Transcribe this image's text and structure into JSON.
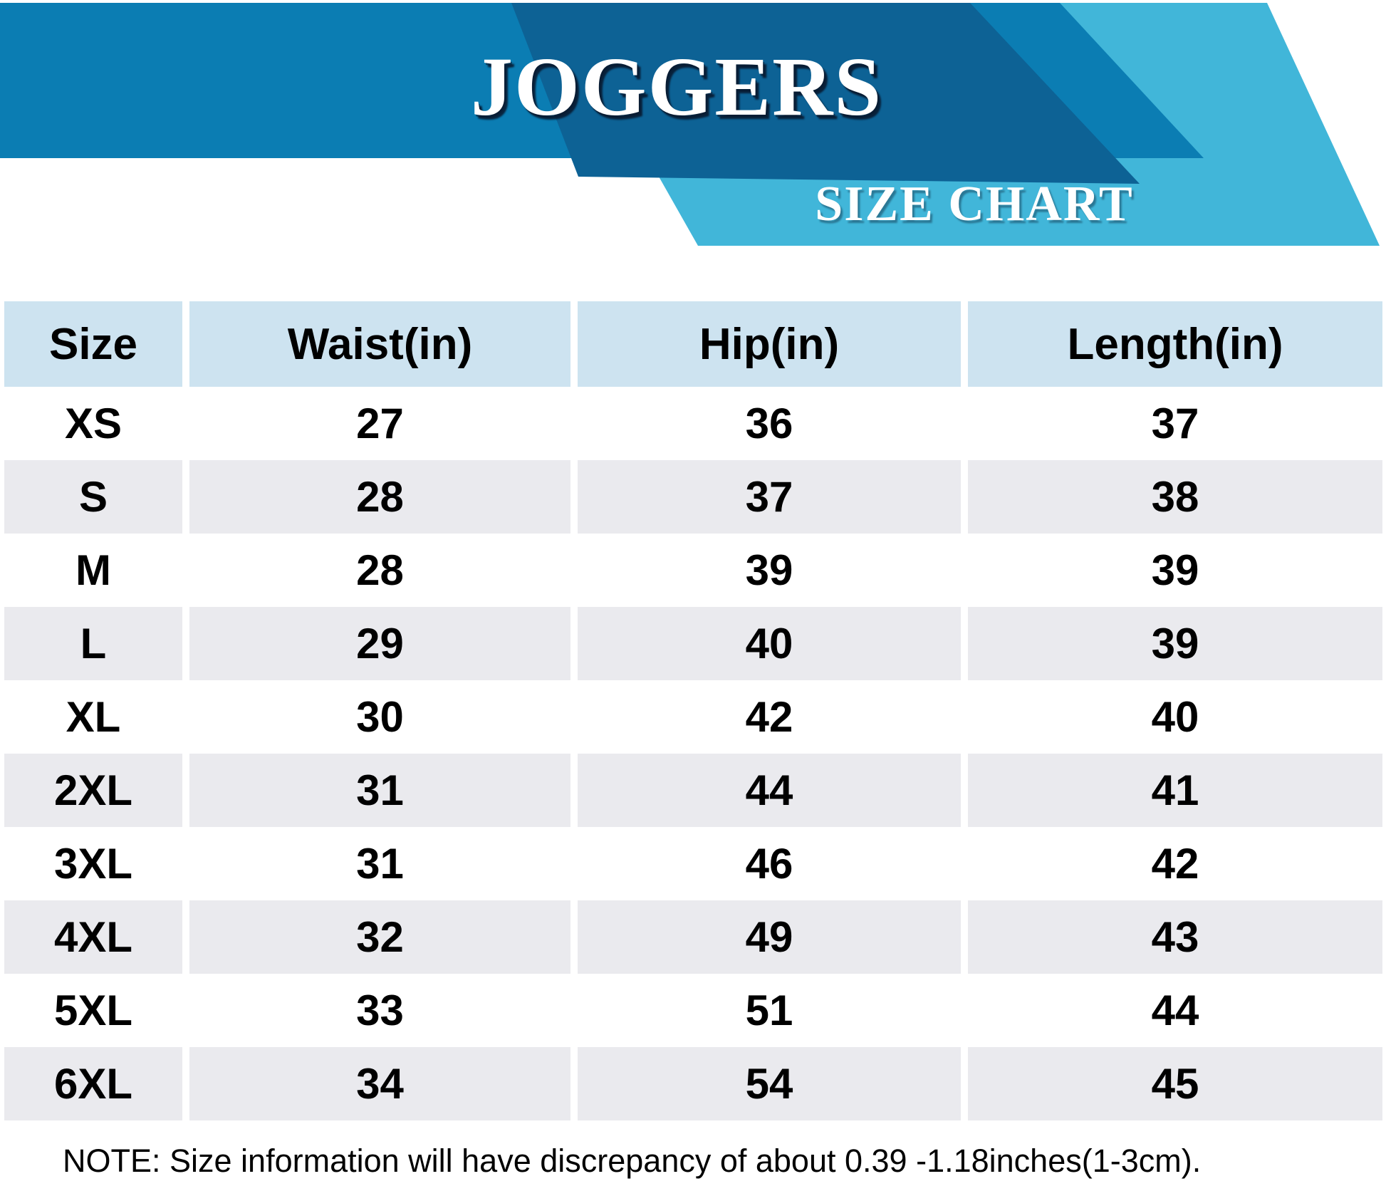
{
  "banner": {
    "title": "JOGGERS",
    "subtitle": "SIZE CHART",
    "colors": {
      "band_blue": "#0b7db3",
      "panel_dark_blue": "#0d6295",
      "ribbon_light_blue": "#41b6d9"
    }
  },
  "table": {
    "columns": [
      "Size",
      "Waist(in)",
      "Hip(in)",
      "Length(in)"
    ],
    "rows": [
      {
        "size": "XS",
        "waist": "27",
        "hip": "36",
        "length": "37"
      },
      {
        "size": "S",
        "waist": "28",
        "hip": "37",
        "length": "38"
      },
      {
        "size": "M",
        "waist": "28",
        "hip": "39",
        "length": "39"
      },
      {
        "size": "L",
        "waist": "29",
        "hip": "40",
        "length": "39"
      },
      {
        "size": "XL",
        "waist": "30",
        "hip": "42",
        "length": "40"
      },
      {
        "size": "2XL",
        "waist": "31",
        "hip": "44",
        "length": "41"
      },
      {
        "size": "3XL",
        "waist": "31",
        "hip": "46",
        "length": "42"
      },
      {
        "size": "4XL",
        "waist": "32",
        "hip": "49",
        "length": "43"
      },
      {
        "size": "5XL",
        "waist": "33",
        "hip": "51",
        "length": "44"
      },
      {
        "size": "6XL",
        "waist": "34",
        "hip": "54",
        "length": "45"
      }
    ],
    "header_bg": "#cde3f0",
    "alt_row_bg": "#eaeaee"
  },
  "note": {
    "text": "NOTE: Size information will have discrepancy of about 0.39 -1.18inches(1-3cm)."
  },
  "chart_data": {
    "type": "table",
    "title": "JOGGERS SIZE CHART",
    "columns": [
      "Size",
      "Waist(in)",
      "Hip(in)",
      "Length(in)"
    ],
    "rows": [
      [
        "XS",
        27,
        36,
        37
      ],
      [
        "S",
        28,
        37,
        38
      ],
      [
        "M",
        28,
        39,
        39
      ],
      [
        "L",
        29,
        40,
        39
      ],
      [
        "XL",
        30,
        42,
        40
      ],
      [
        "2XL",
        31,
        44,
        41
      ],
      [
        "3XL",
        31,
        46,
        42
      ],
      [
        "4XL",
        32,
        49,
        43
      ],
      [
        "5XL",
        33,
        51,
        44
      ],
      [
        "6XL",
        34,
        54,
        45
      ]
    ],
    "note": "NOTE: Size information will have discrepancy of about 0.39 -1.18inches(1-3cm)."
  }
}
